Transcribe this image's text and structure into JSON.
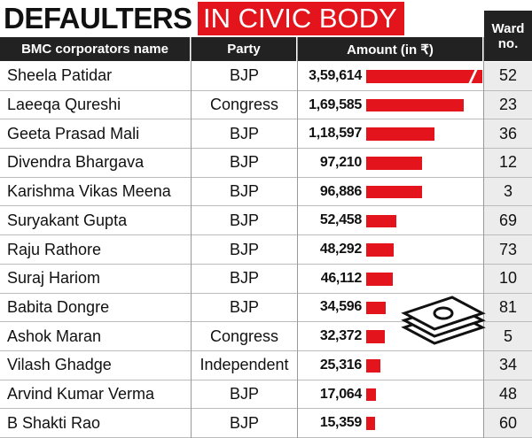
{
  "chart_data": {
    "type": "bar",
    "title": "DEFAULTERS",
    "title_highlight": "IN CIVIC BODY",
    "headers": [
      "BMC corporators name",
      "Party",
      "Amount (in ₹)",
      "Ward no."
    ],
    "categories": [
      "Sheela Patidar",
      "Laeeqa Qureshi",
      "Geeta Prasad Mali",
      "Divendra Bhargava",
      "Karishma Vikas Meena",
      "Suryakant Gupta",
      "Raju Rathore",
      "Suraj Hariom",
      "Babita Dongre",
      "Ashok Maran",
      "Vilash Ghadge",
      "Arvind Kumar Verma",
      "B Shakti Rao"
    ],
    "party": [
      "BJP",
      "Congress",
      "BJP",
      "BJP",
      "BJP",
      "BJP",
      "BJP",
      "BJP",
      "BJP",
      "Congress",
      "Independent",
      "BJP",
      "BJP"
    ],
    "values": [
      359614,
      169585,
      118597,
      97210,
      96886,
      52458,
      48292,
      46112,
      34596,
      32372,
      25316,
      17064,
      15359
    ],
    "value_labels": [
      "3,59,614",
      "1,69,585",
      "1,18,597",
      "97,210",
      "96,886",
      "52,458",
      "48,292",
      "46,112",
      "34,596",
      "32,372",
      "25,316",
      "17,064",
      "15,359"
    ],
    "ward": [
      52,
      23,
      36,
      12,
      3,
      69,
      73,
      10,
      81,
      5,
      34,
      48,
      60
    ],
    "color": "#e3141b"
  }
}
